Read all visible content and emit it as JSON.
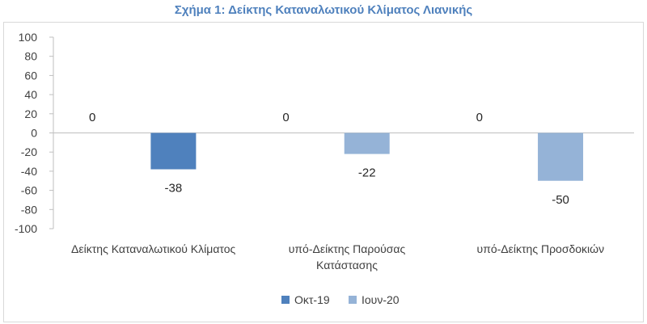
{
  "chart_data": {
    "type": "bar",
    "title": "Σχήμα 1: Δείκτης Καταναλωτικού Κλίματος Λιανικής",
    "categories": [
      [
        "Δείκτης Καταναλωτικού Κλίματος"
      ],
      [
        "υπό-Δείκτης Παρούσας",
        "Κατάστασης"
      ],
      [
        "υπό-Δείκτης Προσδοκιών"
      ]
    ],
    "series": [
      {
        "name": "Οκτ-19",
        "values": [
          0,
          0,
          0
        ],
        "color": "#4f81bd"
      },
      {
        "name": "Ιουν-20",
        "values": [
          -38,
          -22,
          -50
        ],
        "color_first": "#4f81bd",
        "color": "#95b3d7"
      }
    ],
    "bar_colors": {
      "Ιουν-20": [
        "#4f81bd",
        "#95b3d7",
        "#95b3d7"
      ]
    },
    "ylim": [
      -100,
      100
    ],
    "yticks": [
      100,
      80,
      60,
      40,
      20,
      0,
      -20,
      -40,
      -60,
      -80,
      -100
    ],
    "grid": false,
    "legend_position": "bottom"
  }
}
